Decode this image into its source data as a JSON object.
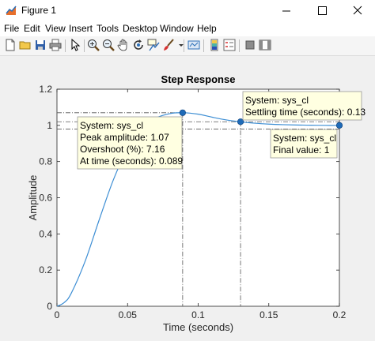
{
  "window": {
    "title": "Figure 1"
  },
  "menu": [
    "File",
    "Edit",
    "View",
    "Insert",
    "Tools",
    "Desktop",
    "Window",
    "Help"
  ],
  "toolbar_icons": [
    "new-figure-icon",
    "open-file-icon",
    "save-icon",
    "print-icon",
    "pointer-icon",
    "zoom-in-icon",
    "zoom-out-icon",
    "pan-icon",
    "rotate-icon",
    "data-cursor-icon",
    "brush-icon",
    "link-plot-icon",
    "colorbar-icon",
    "legend-icon",
    "hide-plot-tools-icon",
    "show-plot-tools-icon"
  ],
  "colors": {
    "line": "#3d8ed4",
    "marker": "#1f6bb8",
    "tip_bg": "#ffffe1"
  },
  "chart_data": {
    "type": "line",
    "title": "Step Response",
    "xlabel": "Time (seconds)",
    "ylabel": "Amplitude",
    "xlim": [
      0,
      0.2
    ],
    "ylim": [
      0,
      1.2
    ],
    "xticks": [
      "0",
      "0.05",
      "0.1",
      "0.15",
      "0.2"
    ],
    "yticks": [
      "0",
      "0.2",
      "0.4",
      "0.6",
      "0.8",
      "1",
      "1.2"
    ],
    "series": [
      {
        "x": [
          0,
          0.005,
          0.01,
          0.02,
          0.03,
          0.04,
          0.05,
          0.06,
          0.07,
          0.08,
          0.089,
          0.1,
          0.11,
          0.12,
          0.13,
          0.14,
          0.15,
          0.16,
          0.17,
          0.18,
          0.19,
          0.2
        ],
        "y": [
          0,
          0.02,
          0.07,
          0.25,
          0.48,
          0.7,
          0.87,
          0.98,
          1.04,
          1.065,
          1.07,
          1.062,
          1.045,
          1.03,
          1.02,
          1.012,
          1.007,
          1.004,
          1.002,
          1.001,
          1.0,
          1.0
        ]
      }
    ],
    "markers": [
      {
        "name": "peak",
        "x": 0.089,
        "y": 1.07
      },
      {
        "name": "settling",
        "x": 0.13,
        "y": 1.02
      },
      {
        "name": "final",
        "x": 0.2,
        "y": 1.0
      }
    ],
    "ref_lines": {
      "peak_y": 1.07,
      "settle_upper": 1.02,
      "settle_lower": 0.98,
      "peak_x": 0.089,
      "settle_x": 0.13
    }
  },
  "datatips": {
    "peak": [
      "System: sys_cl",
      "Peak amplitude: 1.07",
      "Overshoot (%): 7.16",
      "At time (seconds): 0.089"
    ],
    "settling": [
      "System: sys_cl",
      "Settling time (seconds): 0.13"
    ],
    "final": [
      "System: sys_cl",
      "Final value: 1"
    ]
  }
}
